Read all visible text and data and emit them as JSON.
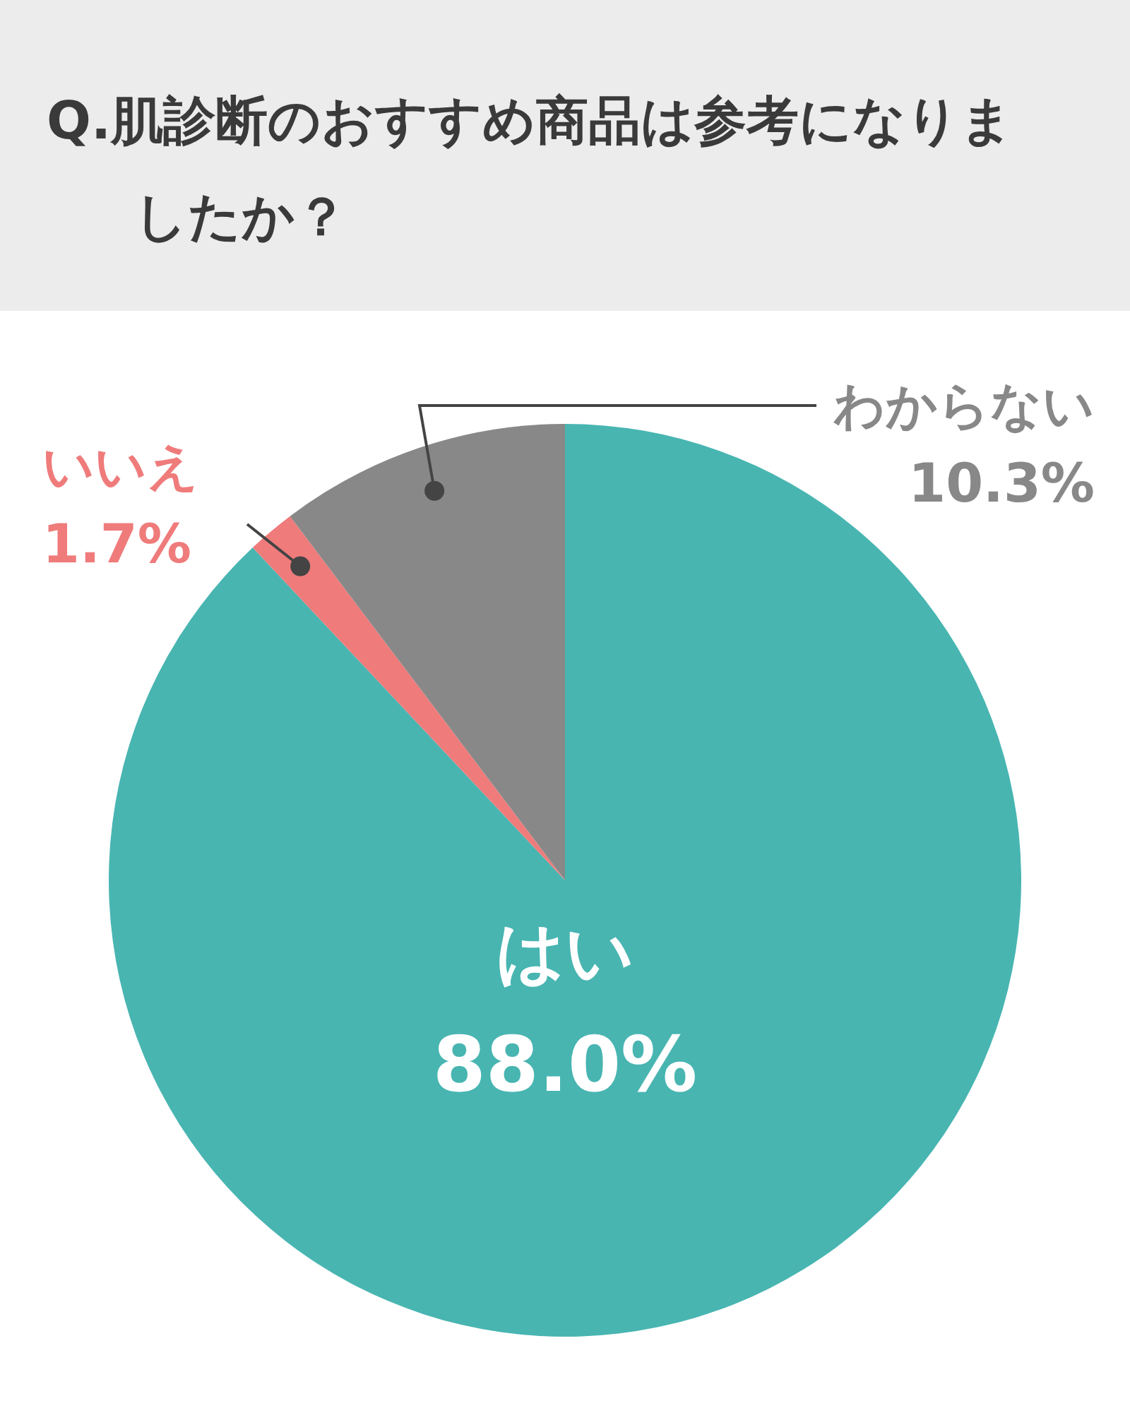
{
  "chart_data": {
    "type": "pie",
    "title": "Q.肌診断のおすすめ商品は参考になりましたか？",
    "categories": [
      "はい",
      "いいえ",
      "わからない"
    ],
    "values": [
      88.0,
      1.7,
      10.3
    ],
    "colors": [
      "#48b5b1",
      "#ef7b7b",
      "#888888"
    ],
    "value_labels": [
      "88.0%",
      "1.7%",
      "10.3%"
    ],
    "legend": false
  }
}
